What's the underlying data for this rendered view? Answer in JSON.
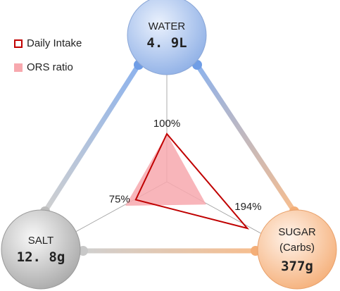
{
  "chart_data": {
    "type": "radar",
    "categories": [
      "WATER",
      "SALT",
      "SUGAR (Carbs)"
    ],
    "amounts": [
      "4. 9L",
      "12. 8g",
      "377g"
    ],
    "series": [
      {
        "name": "Daily Intake",
        "color": "#c00000",
        "values": [
          100,
          75,
          194
        ],
        "value_labels": [
          "100%",
          "75%",
          "194%"
        ]
      },
      {
        "name": "ORS ratio",
        "color": "#f7a8ae",
        "values": [
          100,
          100,
          95
        ]
      }
    ]
  }
}
